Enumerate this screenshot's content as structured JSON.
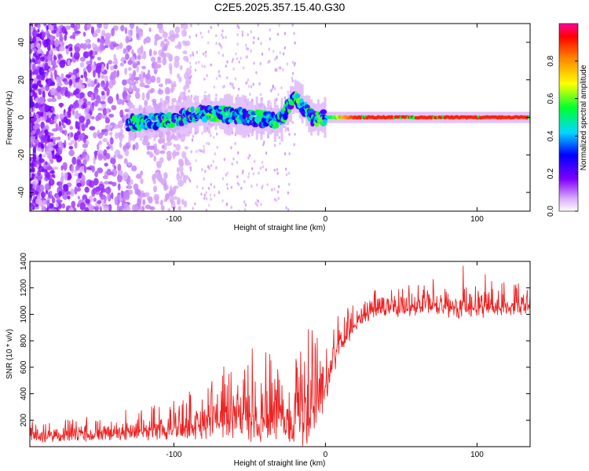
{
  "title": "C2E5.2025.357.15.40.G30",
  "colors": {
    "series": "#ee2222",
    "frame": "#000000",
    "track_low": "#6a10e8",
    "track_high": "#e8d800"
  },
  "chart_data": [
    {
      "type": "heatmap",
      "name": "spectrogram",
      "xlabel": "Height of straight line (km)",
      "ylabel": "Frequency (Hz)",
      "xlim": [
        -195,
        135
      ],
      "ylim": [
        -50,
        50
      ],
      "xticks": [
        -100,
        0,
        100
      ],
      "xticks_labels": [
        "-100",
        "0",
        "100"
      ],
      "yticks": [
        -40,
        -20,
        0,
        20,
        40
      ],
      "yticks_labels": [
        "-40",
        "-20",
        "0",
        "20",
        "40"
      ],
      "track": {
        "x": [
          -130,
          -120,
          -110,
          -100,
          -90,
          -80,
          -70,
          -60,
          -50,
          -40,
          -30,
          -25,
          -20,
          -10,
          0,
          10,
          20,
          40,
          60,
          80,
          100,
          120,
          135
        ],
        "freq": [
          -3,
          -3,
          -2,
          -1,
          1,
          2,
          2,
          1,
          0,
          -1,
          -2,
          5,
          12,
          0,
          0,
          0,
          0,
          0,
          0,
          0,
          0,
          0,
          0
        ],
        "amplitude": [
          0.25,
          0.3,
          0.3,
          0.35,
          0.35,
          0.35,
          0.35,
          0.3,
          0.3,
          0.3,
          0.3,
          0.35,
          0.35,
          0.3,
          0.4,
          0.75,
          0.9,
          0.9,
          0.9,
          0.9,
          0.9,
          0.9,
          0.9
        ]
      },
      "noise": {
        "x_range": [
          -195,
          -90
        ],
        "amplitude": 0.1
      }
    },
    {
      "type": "colorbar",
      "name": "amplitude-scale",
      "label": "Normalized spectral amplitude",
      "range": [
        0,
        1
      ],
      "ticks": [
        0.0,
        0.2,
        0.4,
        0.6,
        0.8
      ],
      "ticks_labels": [
        "0.0",
        "0.2",
        "0.4",
        "0.6",
        "0.8"
      ]
    },
    {
      "type": "line",
      "name": "snr",
      "xlabel": "Height of straight line (km)",
      "ylabel": "SNR (10 * v/v)",
      "xlim": [
        -195,
        135
      ],
      "ylim": [
        0,
        1400
      ],
      "xticks": [
        -100,
        0,
        100
      ],
      "xticks_labels": [
        "-100",
        "0",
        "100"
      ],
      "yticks": [
        200,
        400,
        600,
        800,
        1000,
        1200,
        1400
      ],
      "yticks_labels": [
        "200",
        "400",
        "600",
        "800",
        "1000",
        "1200",
        "1400"
      ],
      "series": [
        {
          "name": "SNR",
          "x": [
            -195,
            -170,
            -150,
            -130,
            -110,
            -100,
            -90,
            -80,
            -70,
            -60,
            -50,
            -40,
            -30,
            -25,
            -20,
            -15,
            -10,
            0,
            5,
            10,
            15,
            20,
            30,
            40,
            60,
            80,
            100,
            120,
            135
          ],
          "base": [
            90,
            95,
            100,
            110,
            150,
            170,
            180,
            200,
            220,
            230,
            240,
            260,
            260,
            270,
            280,
            300,
            320,
            500,
            650,
            780,
            880,
            960,
            1030,
            1050,
            1070,
            1060,
            1060,
            1070,
            1080
          ],
          "spread": [
            150,
            150,
            150,
            150,
            250,
            300,
            330,
            380,
            450,
            480,
            520,
            560,
            600,
            650,
            700,
            720,
            700,
            500,
            380,
            280,
            230,
            200,
            190,
            200,
            210,
            220,
            250,
            230,
            220
          ]
        }
      ]
    }
  ]
}
